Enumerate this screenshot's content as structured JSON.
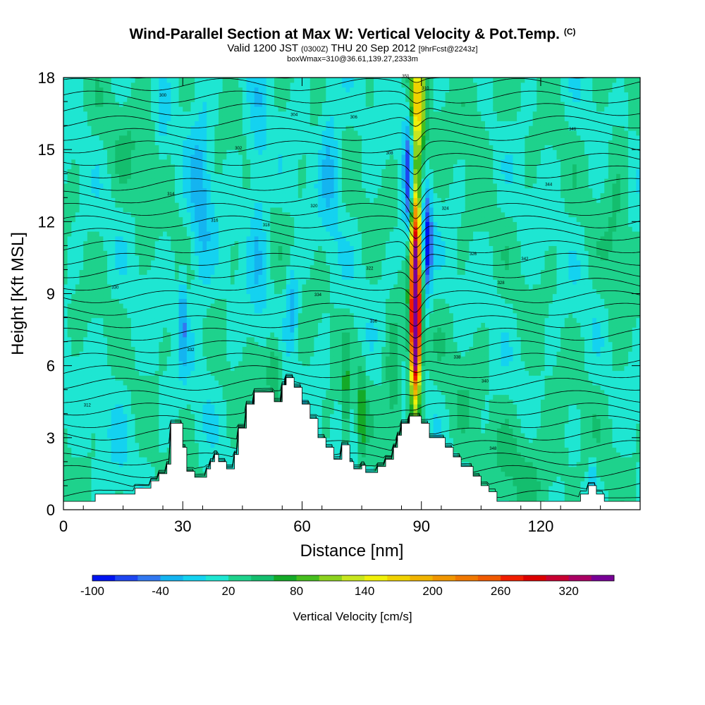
{
  "title": {
    "main": "Wind-Parallel Section at Max W: Vertical Velocity & Pot.Temp.",
    "copyright": "(C)",
    "valid_prefix": "Valid 1200 JST",
    "utc": "(0300Z)",
    "valid_date": "THU 20 Sep 2012",
    "forecast": "[9hrFcst@2243z]",
    "box": "boxWmax=310@36.61,139.27,2333m"
  },
  "chart_data": {
    "type": "heatmap",
    "xlabel": "Distance [nm]",
    "ylabel": "Height [Kft MSL]",
    "xlim": [
      0,
      145
    ],
    "ylim": [
      0,
      18
    ],
    "x_ticks": [
      0,
      30,
      60,
      90,
      120
    ],
    "y_ticks": [
      0,
      3,
      6,
      9,
      12,
      15,
      18
    ],
    "colorbar": {
      "label": "Vertical Velocity [cm/s]",
      "tick_labels": [
        "-100",
        "-40",
        "20",
        "80",
        "140",
        "200",
        "260",
        "320"
      ],
      "tick_values": [
        -100,
        -40,
        20,
        80,
        140,
        200,
        260,
        320
      ],
      "min": -100,
      "max": 360,
      "step": 20,
      "colors": [
        "#0014f0",
        "#1e46f0",
        "#3278f0",
        "#14b4f0",
        "#14d2f0",
        "#1ee6d2",
        "#1ed28c",
        "#14be6e",
        "#14aa28",
        "#46be1e",
        "#8cd21e",
        "#c8e61e",
        "#f0f00a",
        "#f0d200",
        "#f0b400",
        "#f09600",
        "#f07800",
        "#f05a00",
        "#f01e00",
        "#dc0000",
        "#c80032",
        "#aa0064",
        "#780096"
      ]
    },
    "terrain": [
      [
        0,
        0.35
      ],
      [
        8,
        0.35
      ],
      [
        8,
        0.65
      ],
      [
        18,
        0.65
      ],
      [
        18,
        0.9
      ],
      [
        22,
        0.9
      ],
      [
        22,
        1.2
      ],
      [
        24,
        1.2
      ],
      [
        24,
        1.5
      ],
      [
        26,
        1.5
      ],
      [
        26,
        1.9
      ],
      [
        27,
        1.9
      ],
      [
        27,
        3.6
      ],
      [
        30,
        3.6
      ],
      [
        30,
        2.6
      ],
      [
        31,
        2.6
      ],
      [
        31,
        1.6
      ],
      [
        33,
        1.6
      ],
      [
        33,
        1.35
      ],
      [
        36,
        1.35
      ],
      [
        36,
        1.7
      ],
      [
        37,
        1.7
      ],
      [
        37,
        2.0
      ],
      [
        38,
        2.0
      ],
      [
        38,
        2.3
      ],
      [
        39,
        2.3
      ],
      [
        39,
        2.0
      ],
      [
        41,
        2.0
      ],
      [
        41,
        1.7
      ],
      [
        43,
        1.7
      ],
      [
        43,
        2.3
      ],
      [
        44,
        2.3
      ],
      [
        44,
        3.4
      ],
      [
        46,
        3.4
      ],
      [
        46,
        4.4
      ],
      [
        48,
        4.4
      ],
      [
        48,
        4.9
      ],
      [
        53,
        4.9
      ],
      [
        53,
        4.5
      ],
      [
        55,
        4.5
      ],
      [
        55,
        5.2
      ],
      [
        56,
        5.2
      ],
      [
        56,
        5.5
      ],
      [
        58,
        5.5
      ],
      [
        58,
        5.1
      ],
      [
        60,
        5.1
      ],
      [
        60,
        4.4
      ],
      [
        62,
        4.4
      ],
      [
        62,
        3.8
      ],
      [
        64,
        3.8
      ],
      [
        64,
        3.0
      ],
      [
        66,
        3.0
      ],
      [
        66,
        2.6
      ],
      [
        68,
        2.6
      ],
      [
        68,
        2.1
      ],
      [
        70,
        2.1
      ],
      [
        70,
        2.7
      ],
      [
        72,
        2.7
      ],
      [
        72,
        2.0
      ],
      [
        73,
        2.0
      ],
      [
        73,
        1.7
      ],
      [
        75,
        1.7
      ],
      [
        75,
        1.85
      ],
      [
        76,
        1.85
      ],
      [
        76,
        1.55
      ],
      [
        79,
        1.55
      ],
      [
        79,
        1.8
      ],
      [
        81,
        1.8
      ],
      [
        81,
        2.1
      ],
      [
        83,
        2.1
      ],
      [
        83,
        2.6
      ],
      [
        84,
        2.6
      ],
      [
        84,
        3.1
      ],
      [
        85,
        3.1
      ],
      [
        85,
        3.6
      ],
      [
        87,
        3.6
      ],
      [
        87,
        3.9
      ],
      [
        90,
        3.9
      ],
      [
        90,
        3.6
      ],
      [
        92,
        3.6
      ],
      [
        92,
        3.0
      ],
      [
        96,
        3.0
      ],
      [
        96,
        2.6
      ],
      [
        98,
        2.6
      ],
      [
        98,
        2.2
      ],
      [
        100,
        2.2
      ],
      [
        100,
        1.8
      ],
      [
        103,
        1.8
      ],
      [
        103,
        1.4
      ],
      [
        105,
        1.4
      ],
      [
        105,
        1.0
      ],
      [
        107,
        1.0
      ],
      [
        107,
        0.75
      ],
      [
        109,
        0.75
      ],
      [
        109,
        0.35
      ],
      [
        130,
        0.35
      ],
      [
        130,
        0.65
      ],
      [
        132,
        0.65
      ],
      [
        132,
        1.0
      ],
      [
        134,
        1.0
      ],
      [
        134,
        0.65
      ],
      [
        136,
        0.65
      ],
      [
        136,
        0.35
      ],
      [
        145,
        0.35
      ]
    ],
    "features": [
      {
        "x": 88.5,
        "y": 9.5,
        "dx": 1.3,
        "dy": 4.2,
        "w": 360
      },
      {
        "x": 88.5,
        "y": 7.0,
        "dx": 1.2,
        "dy": 2.0,
        "w": 200
      },
      {
        "x": 89.0,
        "y": 17.0,
        "dx": 2.0,
        "dy": 2.5,
        "w": 140
      },
      {
        "x": 87.0,
        "y": 14.0,
        "dx": 1.4,
        "dy": 3.0,
        "w": -110
      },
      {
        "x": 91.5,
        "y": 11.0,
        "dx": 1.2,
        "dy": 2.2,
        "w": -110
      },
      {
        "x": 57.5,
        "y": 8.5,
        "dx": 1.5,
        "dy": 1.6,
        "w": -55
      },
      {
        "x": 34.5,
        "y": 13.0,
        "dx": 3.0,
        "dy": 5.0,
        "w": -40
      },
      {
        "x": 49.0,
        "y": 13.0,
        "dx": 2.5,
        "dy": 5.0,
        "w": -35
      },
      {
        "x": 67.0,
        "y": 15.0,
        "dx": 2.5,
        "dy": 3.5,
        "w": -40
      },
      {
        "x": 30.0,
        "y": 8.0,
        "dx": 1.0,
        "dy": 2.0,
        "w": -60
      },
      {
        "x": 25.0,
        "y": 16.5,
        "dx": 1.2,
        "dy": 2.5,
        "w": -20
      },
      {
        "x": 75.0,
        "y": 4.0,
        "dx": 1.0,
        "dy": 2.0,
        "w": 55
      },
      {
        "x": 71.0,
        "y": 4.5,
        "dx": 1.0,
        "dy": 2.0,
        "w": 50
      },
      {
        "x": 53.0,
        "y": 6.0,
        "dx": 2.0,
        "dy": 1.5,
        "w": 50
      },
      {
        "x": 83.0,
        "y": 5.5,
        "dx": 2.0,
        "dy": 2.5,
        "w": 45
      },
      {
        "x": 118.0,
        "y": 2.0,
        "dx": 10.0,
        "dy": 2.0,
        "w": 25
      },
      {
        "x": 104.0,
        "y": 17.0,
        "dx": 6.0,
        "dy": 2.0,
        "w": 20
      },
      {
        "x": 18.0,
        "y": 15.5,
        "dx": 6.0,
        "dy": 2.5,
        "w": 15
      },
      {
        "x": 139.0,
        "y": 12.0,
        "dx": 3.0,
        "dy": 6.0,
        "w": 20
      },
      {
        "x": 133.0,
        "y": 1.5,
        "dx": 0.8,
        "dy": 0.8,
        "w": -40
      },
      {
        "x": 14.0,
        "y": 3.5,
        "dx": 5.0,
        "dy": 2.5,
        "w": -10
      },
      {
        "x": 100.0,
        "y": 5.0,
        "dx": 5.0,
        "dy": 3.0,
        "w": 10
      }
    ],
    "contour_labels": [
      "300",
      "302",
      "304",
      "306",
      "308",
      "310",
      "312",
      "314",
      "316",
      "318",
      "320",
      "322",
      "324",
      "326",
      "328",
      "330",
      "332",
      "334",
      "336",
      "338",
      "340",
      "342",
      "344",
      "346",
      "348",
      "350"
    ]
  }
}
